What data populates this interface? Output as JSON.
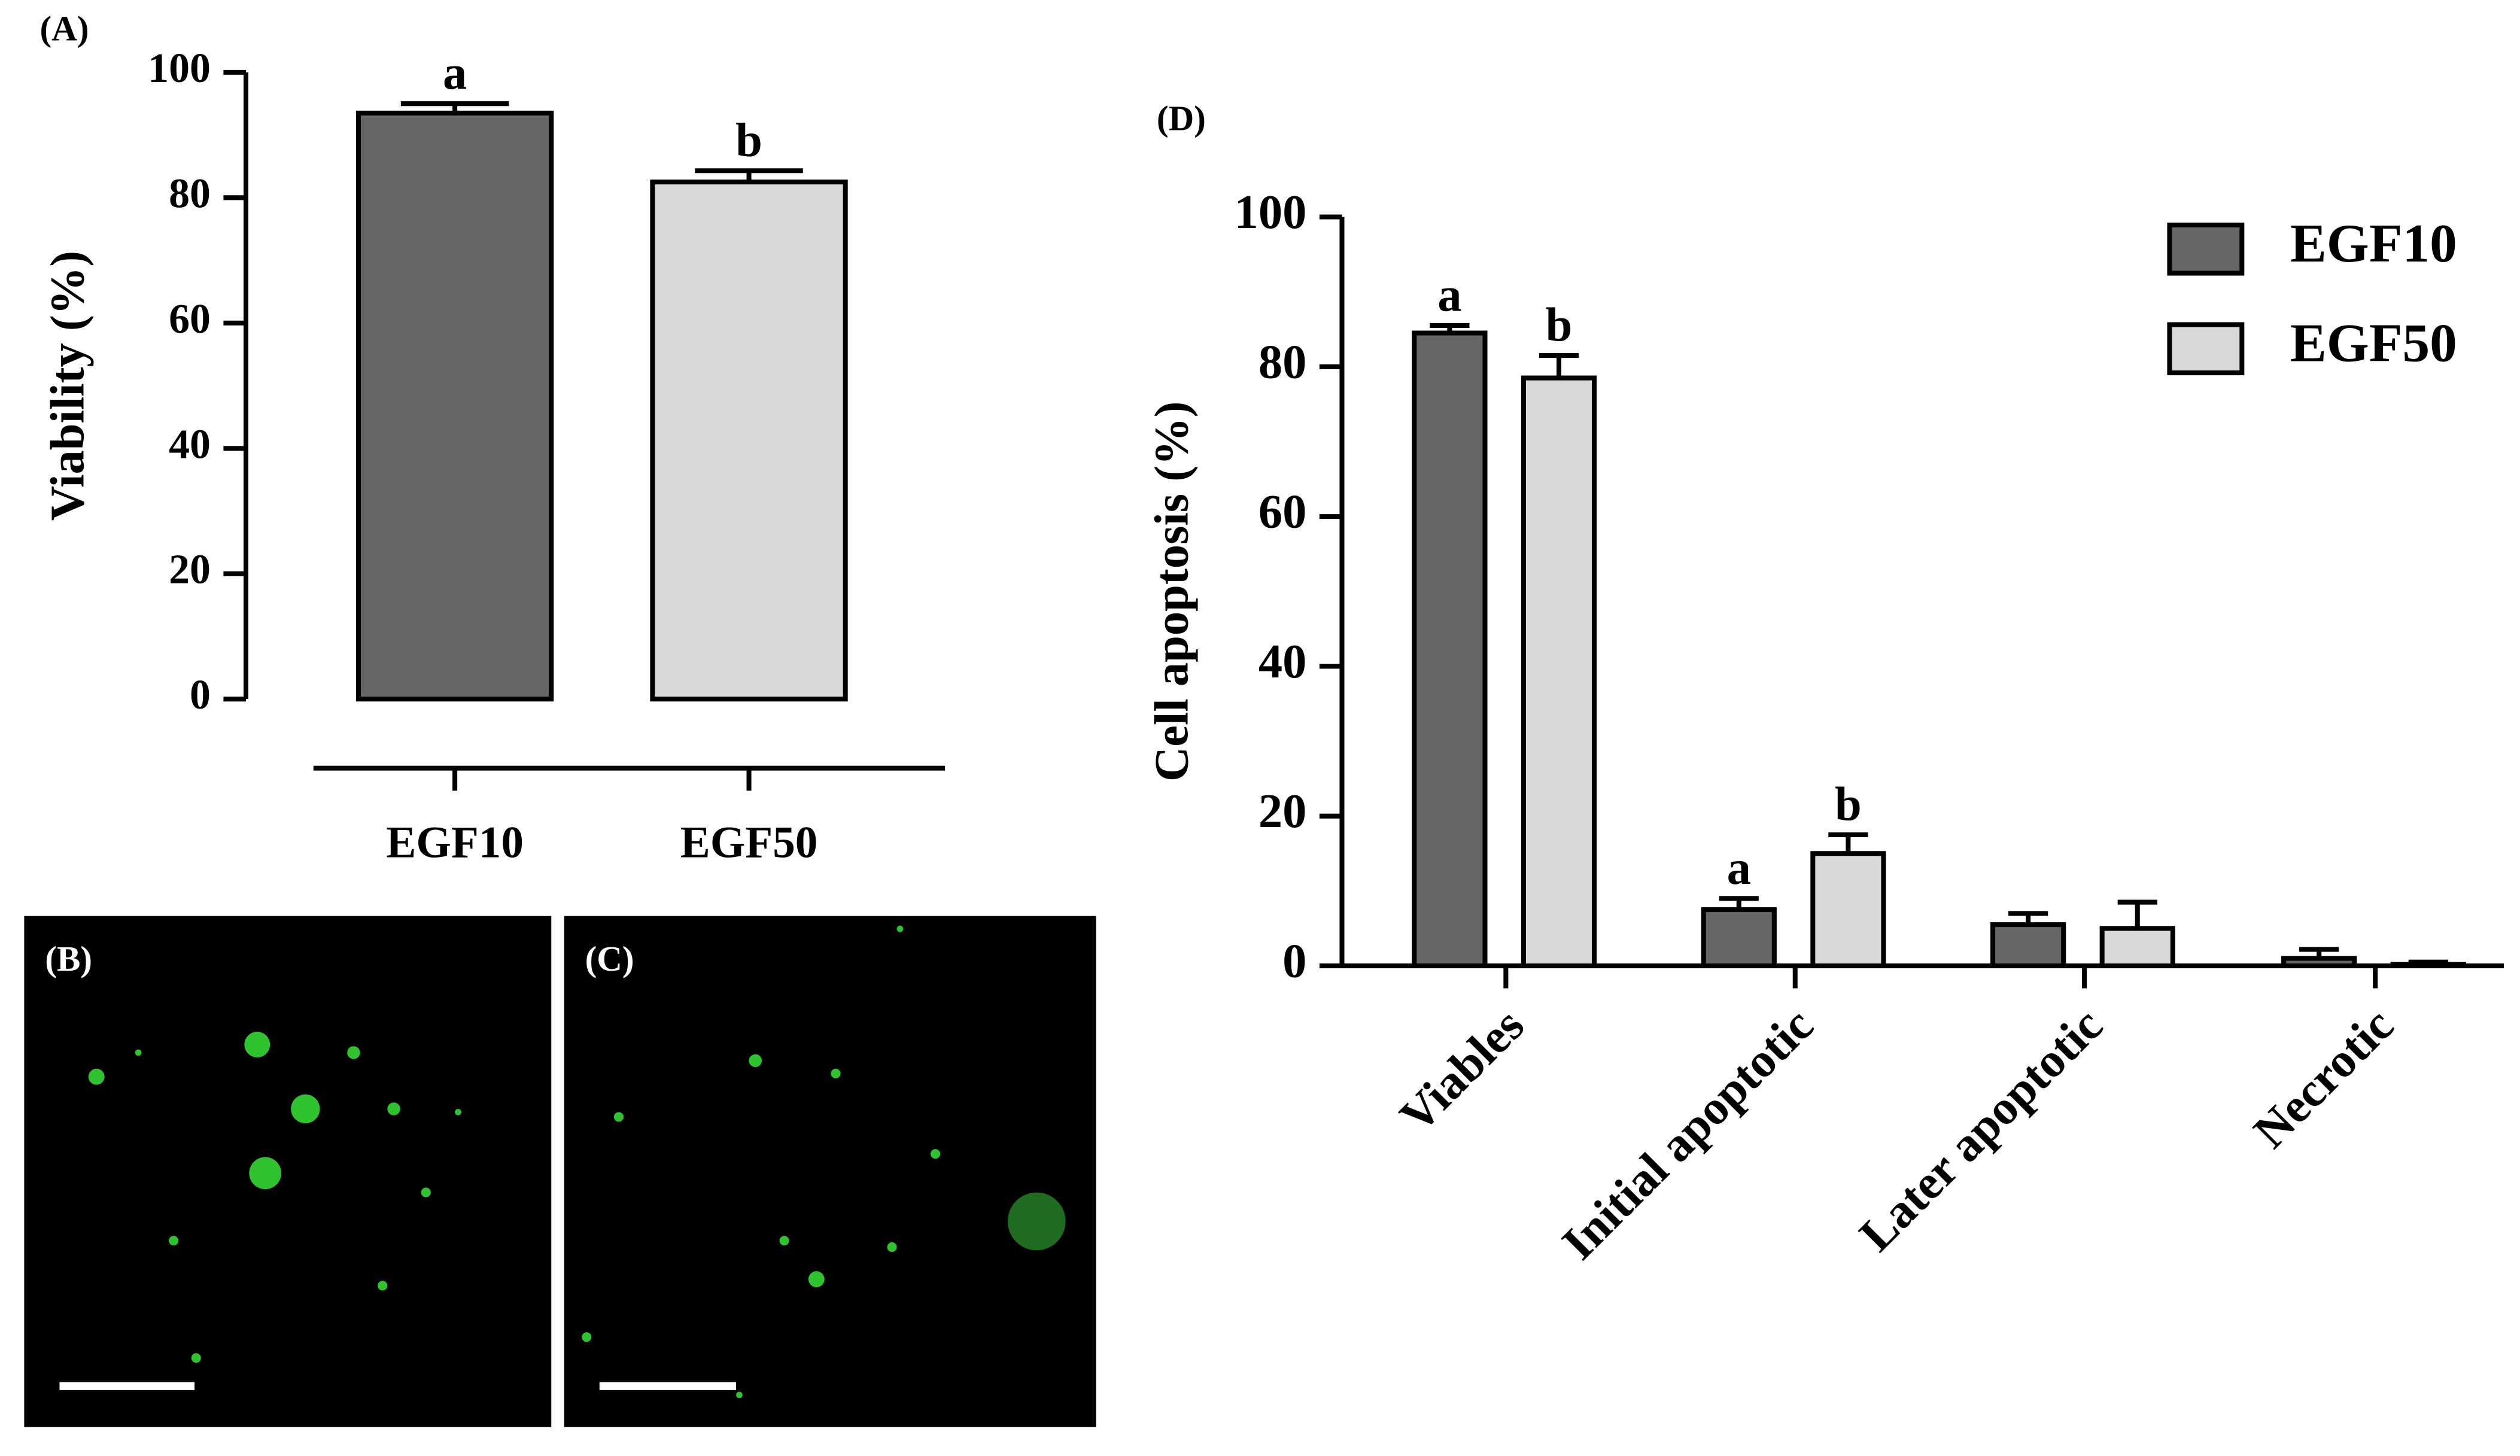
{
  "chart_data": [
    {
      "type": "bar",
      "panel": "(A)",
      "y_label": "Viability (%)",
      "categories": [
        "EGF10",
        "EGF50"
      ],
      "values": [
        93.5,
        82.5
      ],
      "errors": [
        1.5,
        1.8
      ],
      "annotations": [
        "a",
        "b"
      ],
      "colors": [
        "#666666",
        "#d9d9d9"
      ],
      "ylim": [
        0,
        100
      ],
      "yticks": [
        0,
        20,
        40,
        60,
        80,
        100
      ]
    },
    {
      "type": "bar",
      "panel": "(D)",
      "y_label": "Cell apoptosis (%)",
      "categories": [
        "Viables",
        "Initial apoptotic",
        "Later apoptotic",
        "Necrotic"
      ],
      "series": [
        {
          "name": "EGF10",
          "color": "#666666",
          "values": [
            84.5,
            7.5,
            5.5,
            1
          ],
          "errors": [
            1,
            1.5,
            1.5,
            1.2
          ],
          "annotations": [
            "a",
            "a",
            null,
            null
          ]
        },
        {
          "name": "EGF50",
          "color": "#d9d9d9",
          "values": [
            78.5,
            15,
            5,
            0.2
          ],
          "errors": [
            3,
            2.5,
            3.5,
            0.3
          ],
          "annotations": [
            "b",
            "b",
            null,
            null
          ]
        }
      ],
      "ylim": [
        0,
        100
      ],
      "yticks": [
        0,
        20,
        40,
        60,
        80,
        100
      ],
      "legend": "upper right"
    }
  ],
  "images": [
    {
      "label": "(B)"
    },
    {
      "label": "(C)"
    }
  ]
}
